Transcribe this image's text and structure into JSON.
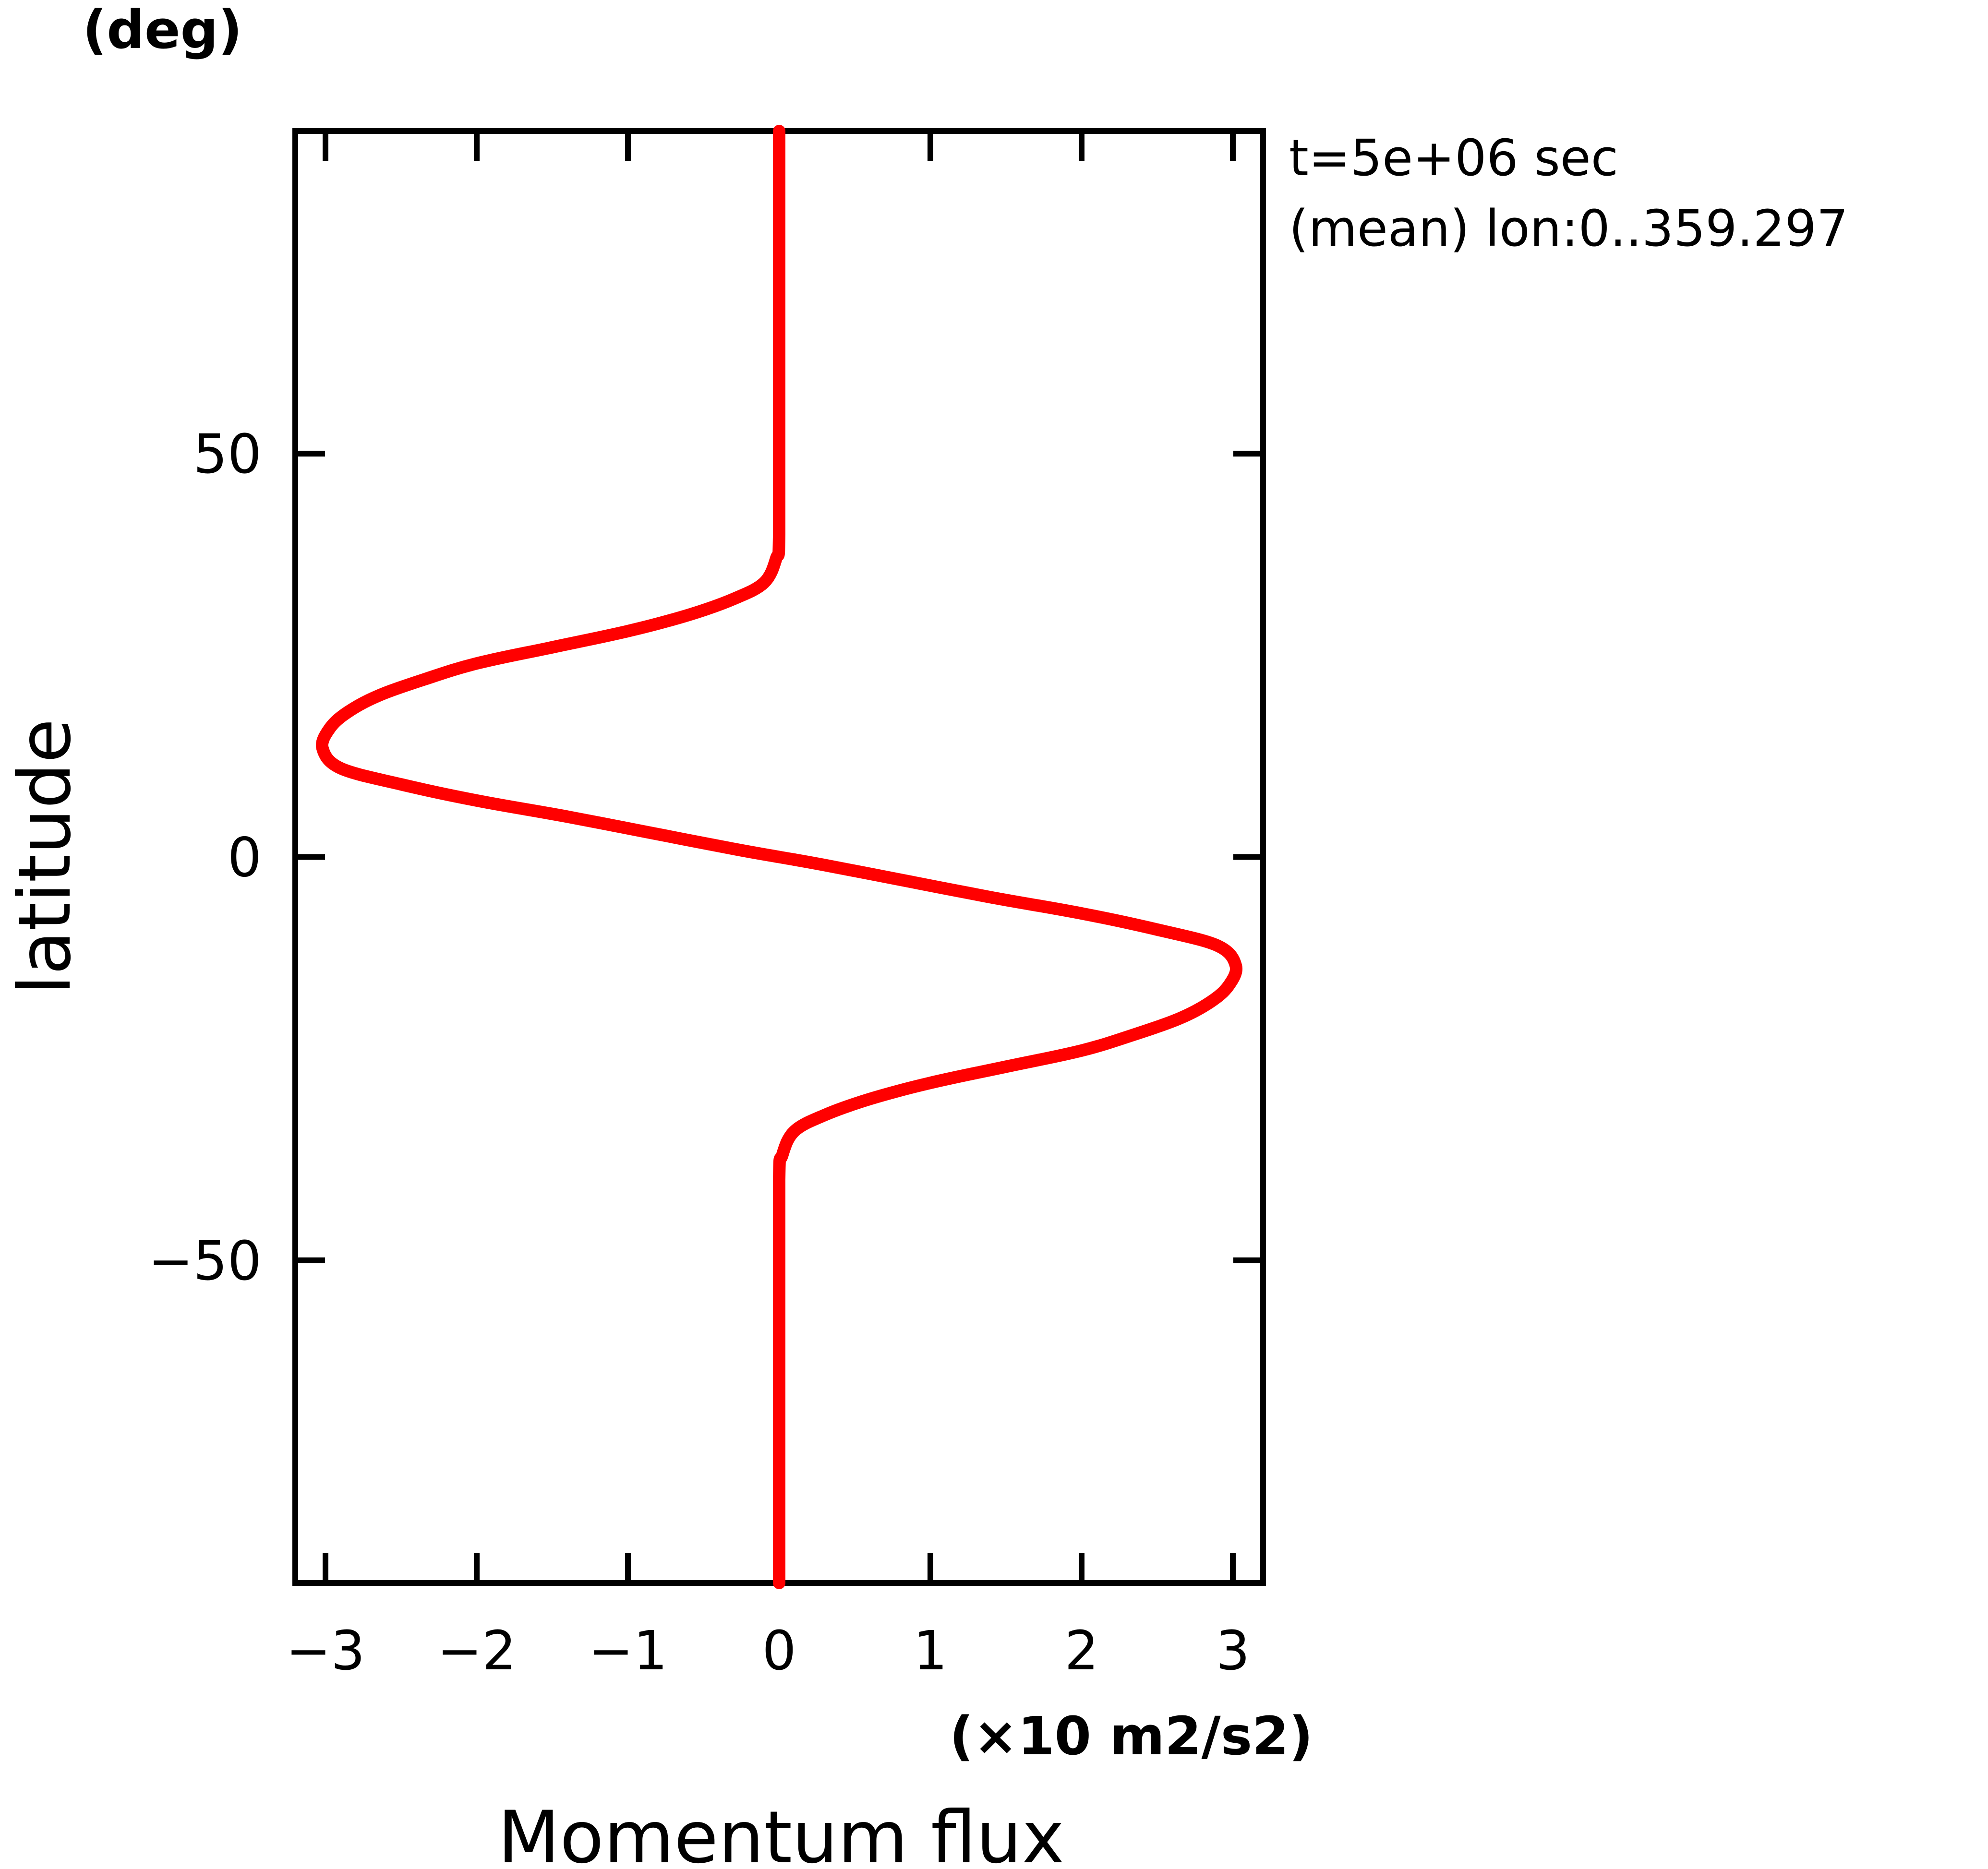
{
  "chart_data": {
    "type": "line",
    "title": "",
    "xlabel": "Momentum flux",
    "xunits": "(×10 m2/s2)",
    "ylabel": "latitude",
    "yunits": "(deg)",
    "xlim": [
      -3.2,
      3.2
    ],
    "ylim": [
      -90,
      90
    ],
    "x_ticks": [
      -3,
      -2,
      -1,
      0,
      1,
      2,
      3
    ],
    "x_tick_labels": [
      "−3",
      "−2",
      "−1",
      "0",
      "1",
      "2",
      "3"
    ],
    "y_ticks": [
      -50,
      0,
      50
    ],
    "y_tick_labels": [
      "−50",
      "0",
      "50"
    ],
    "grid": false,
    "annotations": [
      "t=5e+06 sec",
      "(mean) lon:0..359.297"
    ],
    "series": [
      {
        "color": "#ff0000",
        "points": [
          {
            "y": -90,
            "x": 0.0
          },
          {
            "y": -60,
            "x": 0.0
          },
          {
            "y": -40,
            "x": 0.0
          },
          {
            "y": -37,
            "x": 0.02
          },
          {
            "y": -34,
            "x": 0.1
          },
          {
            "y": -32,
            "x": 0.3
          },
          {
            "y": -30,
            "x": 0.6
          },
          {
            "y": -28,
            "x": 1.0
          },
          {
            "y": -26,
            "x": 1.5
          },
          {
            "y": -24,
            "x": 2.0
          },
          {
            "y": -22,
            "x": 2.35
          },
          {
            "y": -20,
            "x": 2.65
          },
          {
            "y": -18,
            "x": 2.85
          },
          {
            "y": -16,
            "x": 2.97
          },
          {
            "y": -13.5,
            "x": 3.02
          },
          {
            "y": -11,
            "x": 2.9
          },
          {
            "y": -9,
            "x": 2.5
          },
          {
            "y": -7,
            "x": 2.0
          },
          {
            "y": -5,
            "x": 1.4
          },
          {
            "y": -3,
            "x": 0.85
          },
          {
            "y": -1,
            "x": 0.3
          },
          {
            "y": 0,
            "x": 0.0
          },
          {
            "y": 1,
            "x": -0.3
          },
          {
            "y": 3,
            "x": -0.85
          },
          {
            "y": 5,
            "x": -1.4
          },
          {
            "y": 7,
            "x": -2.0
          },
          {
            "y": 9,
            "x": -2.5
          },
          {
            "y": 11,
            "x": -2.9
          },
          {
            "y": 13.5,
            "x": -3.02
          },
          {
            "y": 16,
            "x": -2.97
          },
          {
            "y": 18,
            "x": -2.85
          },
          {
            "y": 20,
            "x": -2.65
          },
          {
            "y": 22,
            "x": -2.35
          },
          {
            "y": 24,
            "x": -2.0
          },
          {
            "y": 26,
            "x": -1.5
          },
          {
            "y": 28,
            "x": -1.0
          },
          {
            "y": 30,
            "x": -0.6
          },
          {
            "y": 32,
            "x": -0.3
          },
          {
            "y": 34,
            "x": -0.1
          },
          {
            "y": 37,
            "x": -0.02
          },
          {
            "y": 40,
            "x": 0.0
          },
          {
            "y": 60,
            "x": 0.0
          },
          {
            "y": 90,
            "x": 0.0
          }
        ]
      }
    ]
  }
}
